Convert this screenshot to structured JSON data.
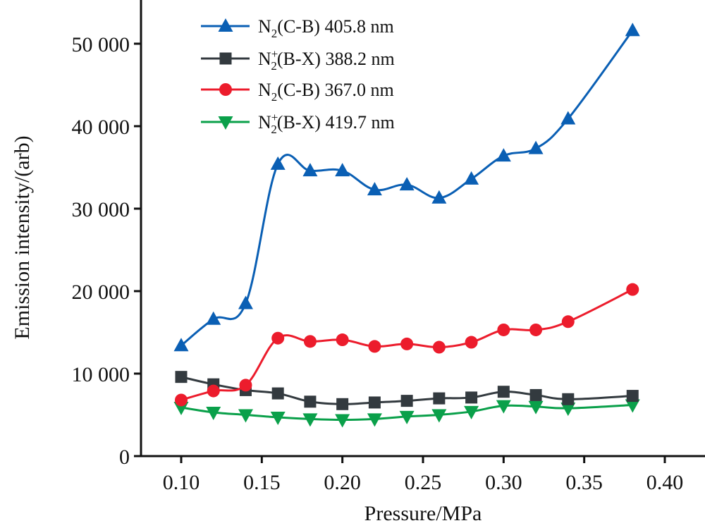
{
  "chart_data": {
    "type": "line",
    "title": "",
    "xlabel": "Pressure/MPa",
    "ylabel": "Emission intensity/(arb)",
    "xlim": [
      0.076,
      0.426
    ],
    "ylim": [
      0,
      55000
    ],
    "x_ticks": [
      0.1,
      0.15,
      0.2,
      0.25,
      0.3,
      0.35,
      0.4
    ],
    "x_tick_labels": [
      "0.10",
      "0.15",
      "0.20",
      "0.25",
      "0.30",
      "0.35",
      "0.40"
    ],
    "y_ticks": [
      0,
      10000,
      20000,
      30000,
      40000,
      50000
    ],
    "y_tick_labels": [
      "0",
      "10 000",
      "20 000",
      "30 000",
      "40 000",
      "50 000"
    ],
    "grid": false,
    "legend_position": "top-center",
    "x": [
      0.1,
      0.12,
      0.14,
      0.16,
      0.18,
      0.2,
      0.22,
      0.24,
      0.26,
      0.28,
      0.3,
      0.32,
      0.34,
      0.38
    ],
    "series": [
      {
        "name": "N2(C-B) 405.8 nm",
        "label_parts": {
          "base": "N",
          "sup": "",
          "sub": "2",
          "rest": "(C-B) 405.8 nm"
        },
        "color": "#0a5fb4",
        "marker": "triangle-up",
        "values": [
          13400,
          16600,
          18500,
          35400,
          34600,
          34600,
          32300,
          32900,
          31300,
          33600,
          36400,
          37300,
          40900,
          51600
        ]
      },
      {
        "name": "N+2(B-X) 388.2 nm",
        "label_parts": {
          "base": "N",
          "sup": "+",
          "sub": "2",
          "rest": "(B-X) 388.2 nm"
        },
        "color": "#333a3f",
        "marker": "square",
        "values": [
          9600,
          8700,
          8000,
          7600,
          6600,
          6300,
          6500,
          6700,
          7000,
          7100,
          7800,
          7400,
          6900,
          7300
        ]
      },
      {
        "name": "N2(C-B) 367.0 nm",
        "label_parts": {
          "base": "N",
          "sup": "",
          "sub": "2",
          "rest": "(C-B) 367.0 nm"
        },
        "color": "#ec1c2c",
        "marker": "circle",
        "values": [
          6800,
          7900,
          8600,
          14300,
          13900,
          14100,
          13300,
          13600,
          13200,
          13800,
          15300,
          15300,
          16300,
          20200
        ]
      },
      {
        "name": "N+2(B-X) 419.7 nm",
        "label_parts": {
          "base": "N",
          "sup": "+",
          "sub": "2",
          "rest": "(B-X) 419.7 nm"
        },
        "color": "#0aa04a",
        "marker": "triangle-down",
        "values": [
          5900,
          5300,
          5000,
          4700,
          4500,
          4400,
          4500,
          4800,
          5000,
          5400,
          6100,
          6000,
          5800,
          6200
        ]
      }
    ]
  }
}
